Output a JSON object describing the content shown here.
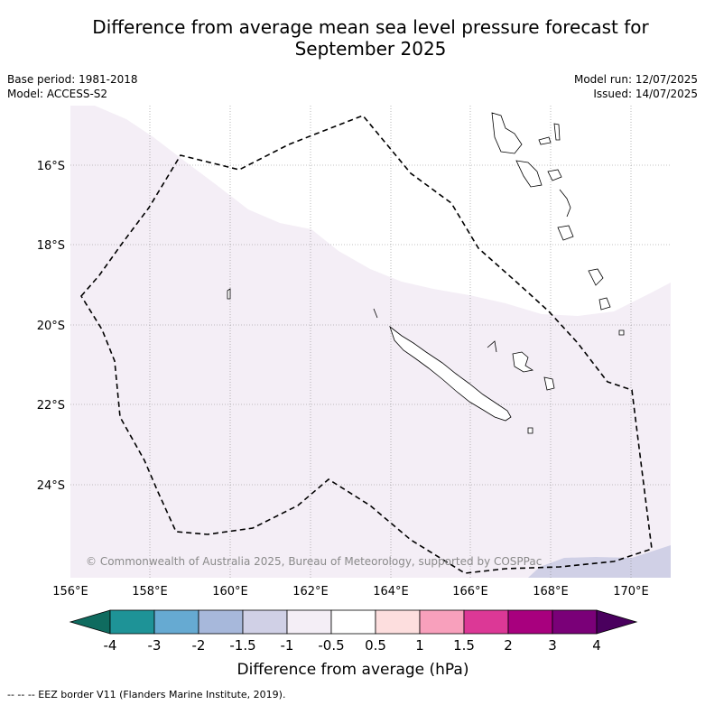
{
  "title_line1": "Difference from average mean sea level pressure forecast for",
  "title_line2": "September 2025",
  "meta_left": [
    "Base period: 1981-2018",
    "Model: ACCESS-S2"
  ],
  "meta_right": [
    "Model run: 12/07/2025",
    "Issued: 14/07/2025"
  ],
  "copyright": "© Commonwealth of Australia 2025, Bureau of Meteorology, supported by COSPPac",
  "map": {
    "lon_ticks": [
      "156°E",
      "158°E",
      "160°E",
      "162°E",
      "164°E",
      "166°E",
      "168°E",
      "170°E"
    ],
    "lat_ticks": [
      "16°S",
      "18°S",
      "20°S",
      "22°S",
      "24°S"
    ],
    "lon_range": [
      156,
      171
    ],
    "lat_range": [
      -26.4,
      -14.6
    ]
  },
  "colorbar": {
    "label": "Difference from average (hPa)",
    "tick_labels": [
      "-4",
      "-3",
      "-2",
      "-1.5",
      "-1",
      "-0.5",
      "0.5",
      "1",
      "1.5",
      "2",
      "3",
      "4"
    ],
    "colors": [
      "#0f6b5f",
      "#1e9397",
      "#66aad2",
      "#a7b8db",
      "#d0d0e6",
      "#f4eef6",
      "#ffffff",
      "#fddede",
      "#f8a0bc",
      "#dc3896",
      "#a8007e",
      "#7a0078",
      "#4a005e"
    ]
  },
  "footer": "-- -- -- EEZ border V11 (Flanders Marine Institute, 2019)."
}
